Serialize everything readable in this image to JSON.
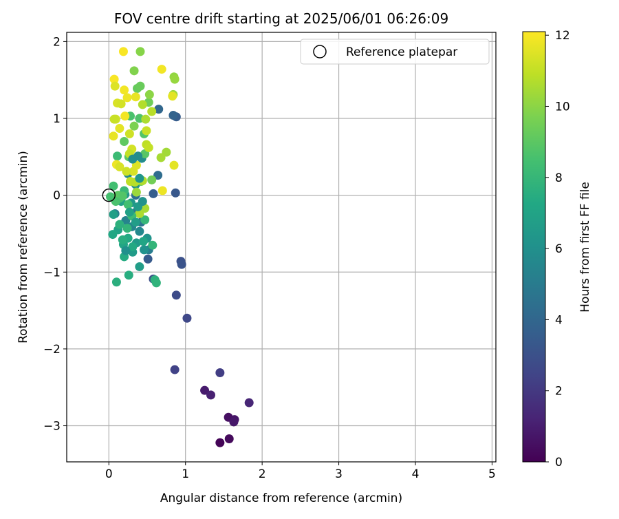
{
  "chart_data": {
    "type": "scatter",
    "title": "FOV centre drift starting at 2025/06/01 06:26:09",
    "xlabel": "Angular distance from reference (arcmin)",
    "ylabel": "Rotation from reference (arcmin)",
    "xlim": [
      -0.55,
      5.05
    ],
    "ylim": [
      -3.47,
      2.12
    ],
    "xticks": [
      0,
      1,
      2,
      3,
      4,
      5
    ],
    "yticks": [
      -3,
      -2,
      -1,
      0,
      1,
      2
    ],
    "xtick_labels": [
      "0",
      "1",
      "2",
      "3",
      "4",
      "5"
    ],
    "ytick_labels": [
      "−3",
      "−2",
      "−1",
      "0",
      "1",
      "2"
    ],
    "grid": true,
    "legend": {
      "placement": "top-right",
      "entries": [
        "Reference platepar"
      ]
    },
    "reference_point": {
      "name": "Reference platepar",
      "x": 0,
      "y": 0,
      "marker": "open-circle"
    },
    "colorbar": {
      "label": "Hours from first FF file",
      "colormap": "viridis",
      "range": [
        0,
        12.1
      ],
      "ticks": [
        0,
        2,
        4,
        6,
        8,
        10,
        12
      ],
      "tick_labels": [
        "0",
        "2",
        "4",
        "6",
        "8",
        "10",
        "12"
      ]
    },
    "points": [
      [
        1.45,
        -3.22,
        0.1
      ],
      [
        1.57,
        -3.17,
        0.3
      ],
      [
        1.56,
        -2.89,
        0.5
      ],
      [
        1.64,
        -2.92,
        0.7
      ],
      [
        1.63,
        -2.95,
        0.8
      ],
      [
        1.83,
        -2.7,
        1.3
      ],
      [
        1.25,
        -2.54,
        0.9
      ],
      [
        1.33,
        -2.6,
        1.1
      ],
      [
        1.45,
        -2.31,
        2.2
      ],
      [
        0.86,
        -2.27,
        2.4
      ],
      [
        1.02,
        -1.6,
        2.6
      ],
      [
        0.88,
        -1.3,
        2.8
      ],
      [
        0.94,
        -0.86,
        3.0
      ],
      [
        0.95,
        -0.9,
        3.1
      ],
      [
        0.58,
        -1.09,
        2.9
      ],
      [
        0.51,
        -0.83,
        3.4
      ],
      [
        0.87,
        0.03,
        3.3
      ],
      [
        0.58,
        0.02,
        3.6
      ],
      [
        0.88,
        1.02,
        3.5
      ],
      [
        0.84,
        1.04,
        3.8
      ],
      [
        0.65,
        1.12,
        4.0
      ],
      [
        0.64,
        0.26,
        4.3
      ],
      [
        0.35,
        0.0,
        4.4
      ],
      [
        0.42,
        -0.35,
        4.6
      ],
      [
        0.37,
        -0.2,
        4.9
      ],
      [
        0.52,
        -0.71,
        5.1
      ],
      [
        0.08,
        -0.24,
        5.2
      ],
      [
        0.22,
        -0.33,
        5.4
      ],
      [
        0.3,
        -0.41,
        5.5
      ],
      [
        0.4,
        -0.47,
        5.6
      ],
      [
        0.25,
        0.28,
        5.7
      ],
      [
        0.43,
        0.48,
        5.8
      ],
      [
        0.35,
        0.14,
        6.0
      ],
      [
        0.46,
        -0.71,
        6.1
      ],
      [
        0.5,
        -0.56,
        6.2
      ],
      [
        0.21,
        0.01,
        6.3
      ],
      [
        0.29,
        -0.1,
        6.4
      ],
      [
        0.36,
        -0.62,
        6.5
      ],
      [
        0.31,
        -0.74,
        6.6
      ],
      [
        0.4,
        -0.93,
        6.7
      ],
      [
        0.06,
        -0.25,
        6.8
      ],
      [
        0.16,
        -0.08,
        6.9
      ],
      [
        0.12,
        -0.45,
        7.0
      ],
      [
        0.19,
        -0.64,
        7.1
      ],
      [
        0.05,
        -0.51,
        7.2
      ],
      [
        0.25,
        -0.56,
        7.3
      ],
      [
        0.2,
        -0.8,
        7.4
      ],
      [
        0.26,
        -1.04,
        7.5
      ],
      [
        0.1,
        -1.13,
        7.6
      ],
      [
        0.6,
        -1.1,
        7.7
      ],
      [
        0.62,
        -1.14,
        7.8
      ],
      [
        0.57,
        -0.65,
        7.9
      ],
      [
        0.47,
        -0.32,
        8.0
      ],
      [
        0.2,
        0.06,
        8.1
      ],
      [
        0.11,
        0.51,
        8.2
      ],
      [
        0.14,
        -0.04,
        8.3
      ],
      [
        0.06,
        0.12,
        8.4
      ],
      [
        0.02,
        -0.02,
        8.5
      ],
      [
        0.28,
        1.03,
        8.6
      ],
      [
        0.4,
        1.0,
        8.7
      ],
      [
        0.46,
        0.8,
        8.8
      ],
      [
        0.47,
        0.54,
        8.9
      ],
      [
        0.26,
        0.5,
        9.0
      ],
      [
        0.2,
        0.7,
        9.1
      ],
      [
        0.37,
        1.39,
        9.2
      ],
      [
        0.41,
        1.42,
        9.3
      ],
      [
        0.52,
        1.21,
        9.4
      ],
      [
        0.56,
        0.2,
        9.5
      ],
      [
        0.42,
        0.18,
        9.6
      ],
      [
        0.33,
        0.9,
        9.7
      ],
      [
        0.33,
        1.62,
        9.8
      ],
      [
        0.41,
        1.87,
        9.9
      ],
      [
        0.53,
        1.31,
        10.0
      ],
      [
        0.85,
        1.54,
        10.1
      ],
      [
        0.86,
        1.51,
        10.2
      ],
      [
        0.84,
        1.31,
        10.3
      ],
      [
        0.75,
        0.56,
        10.4
      ],
      [
        0.68,
        0.49,
        10.5
      ],
      [
        0.48,
        0.99,
        10.6
      ],
      [
        0.44,
        1.18,
        10.7
      ],
      [
        0.56,
        1.09,
        10.8
      ],
      [
        0.49,
        0.66,
        10.9
      ],
      [
        0.52,
        0.62,
        11.0
      ],
      [
        0.49,
        0.84,
        11.1
      ],
      [
        0.27,
        0.8,
        11.2
      ],
      [
        0.3,
        0.6,
        11.3
      ],
      [
        0.32,
        0.31,
        11.4
      ],
      [
        0.36,
        0.39,
        11.5
      ],
      [
        0.14,
        0.87,
        11.6
      ],
      [
        0.06,
        0.77,
        11.7
      ],
      [
        0.1,
        0.4,
        11.8
      ],
      [
        0.21,
        1.03,
        11.9
      ],
      [
        0.19,
        1.87,
        12.0
      ],
      [
        0.07,
        1.51,
        12.0
      ],
      [
        0.2,
        1.37,
        11.9
      ],
      [
        0.24,
        1.27,
        11.8
      ],
      [
        0.35,
        1.28,
        11.7
      ],
      [
        0.83,
        1.29,
        11.6
      ],
      [
        0.69,
        1.64,
        11.9
      ],
      [
        0.08,
        1.42,
        11.5
      ],
      [
        0.11,
        1.2,
        11.4
      ],
      [
        0.16,
        1.19,
        11.3
      ],
      [
        0.09,
        0.99,
        11.2
      ],
      [
        0.07,
        0.99,
        11.1
      ],
      [
        0.27,
        0.54,
        11.0
      ],
      [
        0.28,
        0.18,
        10.9
      ],
      [
        0.34,
        0.17,
        10.8
      ],
      [
        0.44,
        0.19,
        10.7
      ],
      [
        0.4,
        -0.24,
        10.6
      ],
      [
        0.47,
        -0.17,
        10.5
      ],
      [
        0.85,
        0.39,
        11.6
      ],
      [
        0.7,
        0.06,
        11.8
      ],
      [
        0.14,
        0.37,
        11.4
      ],
      [
        0.23,
        0.31,
        11.2
      ],
      [
        0.36,
        0.04,
        10.3
      ],
      [
        0.12,
        0.0,
        9.0
      ],
      [
        0.18,
        -0.01,
        8.8
      ],
      [
        0.09,
        -0.08,
        8.6
      ],
      [
        0.25,
        -0.12,
        8.4
      ],
      [
        0.3,
        -0.27,
        8.2
      ],
      [
        0.24,
        -0.43,
        7.9
      ],
      [
        0.14,
        -0.38,
        7.7
      ],
      [
        0.18,
        -0.58,
        7.5
      ],
      [
        0.31,
        -0.67,
        7.3
      ],
      [
        0.45,
        -0.6,
        7.1
      ],
      [
        0.27,
        -0.22,
        6.9
      ],
      [
        0.35,
        -0.35,
        6.7
      ],
      [
        0.38,
        -0.15,
        6.5
      ],
      [
        0.4,
        0.22,
        6.3
      ],
      [
        0.44,
        -0.08,
        6.1
      ],
      [
        0.22,
        -0.72,
        6.0
      ],
      [
        0.31,
        0.47,
        5.9
      ],
      [
        0.38,
        0.51,
        5.8
      ]
    ]
  }
}
